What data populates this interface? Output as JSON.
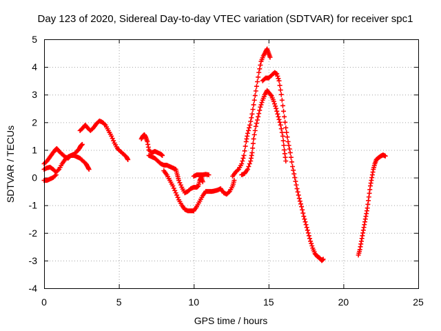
{
  "chart_data": {
    "type": "scatter",
    "title": "Day 123 of 2020, Sidereal Day-to-day VTEC variation (SDTVAR) for receiver spc1",
    "xlabel": "GPS time / hours",
    "ylabel": "SDTVAR / TECUs",
    "xlim": [
      0,
      25
    ],
    "ylim": [
      -4,
      5
    ],
    "xticks": [
      0,
      5,
      10,
      15,
      20,
      25
    ],
    "yticks": [
      -4,
      -3,
      -2,
      -1,
      0,
      1,
      2,
      3,
      4,
      5
    ],
    "grid": true,
    "marker": "plus",
    "color": "#ff0000",
    "series": [
      {
        "name": "SDTVAR",
        "segments": [
          [
            [
              0.0,
              0.5
            ],
            [
              0.2,
              0.6
            ],
            [
              0.4,
              0.75
            ],
            [
              0.6,
              0.9
            ],
            [
              0.75,
              1.0
            ],
            [
              0.85,
              1.05
            ],
            [
              1.0,
              0.95
            ],
            [
              1.2,
              0.85
            ],
            [
              1.4,
              0.75
            ],
            [
              1.6,
              0.7
            ],
            [
              1.8,
              0.8
            ],
            [
              2.0,
              0.8
            ],
            [
              2.2,
              0.75
            ],
            [
              2.4,
              0.7
            ],
            [
              2.6,
              0.6
            ],
            [
              2.8,
              0.5
            ],
            [
              2.9,
              0.4
            ],
            [
              3.0,
              0.3
            ]
          ],
          [
            [
              0.0,
              0.3
            ],
            [
              0.2,
              0.35
            ],
            [
              0.4,
              0.38
            ],
            [
              0.6,
              0.3
            ],
            [
              0.8,
              0.2
            ],
            [
              1.0,
              0.3
            ],
            [
              1.2,
              0.5
            ],
            [
              1.4,
              0.65
            ],
            [
              1.6,
              0.75
            ],
            [
              1.8,
              0.8
            ],
            [
              2.0,
              0.85
            ],
            [
              2.2,
              0.95
            ],
            [
              2.35,
              1.05
            ],
            [
              2.45,
              1.15
            ],
            [
              2.55,
              1.2
            ]
          ],
          [
            [
              0.0,
              -0.1
            ],
            [
              0.2,
              -0.1
            ],
            [
              0.4,
              -0.05
            ],
            [
              0.6,
              0.0
            ],
            [
              0.8,
              0.1
            ]
          ],
          [
            [
              2.4,
              1.7
            ],
            [
              2.6,
              1.8
            ],
            [
              2.75,
              1.9
            ],
            [
              2.9,
              1.8
            ],
            [
              3.1,
              1.7
            ],
            [
              3.3,
              1.8
            ],
            [
              3.5,
              1.95
            ],
            [
              3.7,
              2.05
            ],
            [
              3.9,
              2.0
            ],
            [
              4.1,
              1.9
            ],
            [
              4.3,
              1.7
            ],
            [
              4.5,
              1.5
            ],
            [
              4.7,
              1.25
            ],
            [
              4.9,
              1.05
            ],
            [
              5.1,
              0.95
            ],
            [
              5.3,
              0.85
            ],
            [
              5.5,
              0.75
            ],
            [
              5.6,
              0.65
            ]
          ],
          [
            [
              6.5,
              1.4
            ],
            [
              6.6,
              1.5
            ],
            [
              6.7,
              1.55
            ],
            [
              6.8,
              1.45
            ],
            [
              6.9,
              1.3
            ],
            [
              7.0,
              1.0
            ],
            [
              7.2,
              0.9
            ],
            [
              7.4,
              0.95
            ],
            [
              7.6,
              0.9
            ],
            [
              7.8,
              0.85
            ],
            [
              7.9,
              0.8
            ]
          ],
          [
            [
              7.0,
              0.8
            ],
            [
              7.2,
              0.75
            ],
            [
              7.4,
              0.7
            ],
            [
              7.6,
              0.6
            ],
            [
              7.8,
              0.5
            ],
            [
              8.0,
              0.45
            ],
            [
              8.2,
              0.45
            ],
            [
              8.4,
              0.4
            ],
            [
              8.6,
              0.35
            ],
            [
              8.8,
              0.3
            ],
            [
              8.9,
              0.1
            ],
            [
              9.0,
              -0.1
            ],
            [
              9.2,
              -0.35
            ],
            [
              9.4,
              -0.55
            ],
            [
              9.6,
              -0.5
            ],
            [
              9.8,
              -0.4
            ],
            [
              10.0,
              -0.35
            ],
            [
              10.2,
              -0.35
            ],
            [
              10.3,
              -0.3
            ],
            [
              10.4,
              -0.1
            ],
            [
              10.5,
              0.0
            ],
            [
              10.6,
              -0.15
            ]
          ],
          [
            [
              8.0,
              0.25
            ],
            [
              8.2,
              0.1
            ],
            [
              8.4,
              -0.1
            ],
            [
              8.6,
              -0.3
            ],
            [
              8.8,
              -0.55
            ],
            [
              9.0,
              -0.8
            ],
            [
              9.2,
              -1.0
            ],
            [
              9.4,
              -1.15
            ],
            [
              9.6,
              -1.2
            ],
            [
              9.8,
              -1.2
            ],
            [
              10.0,
              -1.2
            ],
            [
              10.2,
              -1.05
            ],
            [
              10.4,
              -0.85
            ],
            [
              10.6,
              -0.65
            ],
            [
              10.8,
              -0.5
            ],
            [
              11.0,
              -0.5
            ],
            [
              11.2,
              -0.5
            ],
            [
              11.4,
              -0.48
            ],
            [
              11.6,
              -0.45
            ],
            [
              11.8,
              -0.4
            ],
            [
              12.0,
              -0.55
            ],
            [
              12.2,
              -0.6
            ],
            [
              12.4,
              -0.5
            ],
            [
              12.6,
              -0.3
            ],
            [
              12.7,
              -0.1
            ]
          ],
          [
            [
              10.0,
              0.05
            ],
            [
              10.2,
              0.1
            ],
            [
              10.4,
              0.1
            ],
            [
              10.6,
              0.1
            ],
            [
              10.8,
              0.12
            ],
            [
              11.0,
              0.1
            ]
          ],
          [
            [
              12.6,
              0.05
            ],
            [
              12.8,
              0.2
            ],
            [
              13.0,
              0.3
            ],
            [
              13.2,
              0.5
            ],
            [
              13.35,
              0.8
            ],
            [
              13.5,
              1.3
            ],
            [
              13.6,
              1.6
            ],
            [
              13.75,
              1.9
            ],
            [
              13.9,
              2.3
            ],
            [
              14.05,
              2.8
            ],
            [
              14.2,
              3.3
            ],
            [
              14.35,
              3.8
            ],
            [
              14.5,
              4.2
            ],
            [
              14.65,
              4.4
            ],
            [
              14.8,
              4.55
            ],
            [
              14.9,
              4.65
            ],
            [
              15.0,
              4.5
            ],
            [
              15.1,
              4.35
            ]
          ],
          [
            [
              13.2,
              0.1
            ],
            [
              13.4,
              0.15
            ],
            [
              13.6,
              0.3
            ],
            [
              13.8,
              0.6
            ],
            [
              13.9,
              0.9
            ],
            [
              14.0,
              1.4
            ],
            [
              14.15,
              1.85
            ],
            [
              14.3,
              2.2
            ],
            [
              14.45,
              2.55
            ],
            [
              14.6,
              2.8
            ],
            [
              14.75,
              3.0
            ],
            [
              14.9,
              3.15
            ],
            [
              15.05,
              3.05
            ],
            [
              15.2,
              2.95
            ],
            [
              15.35,
              2.75
            ],
            [
              15.5,
              2.5
            ],
            [
              15.65,
              2.2
            ],
            [
              15.8,
              1.9
            ],
            [
              15.95,
              1.5
            ],
            [
              16.05,
              1.0
            ],
            [
              16.15,
              0.6
            ]
          ],
          [
            [
              14.6,
              3.5
            ],
            [
              14.8,
              3.6
            ],
            [
              15.0,
              3.6
            ],
            [
              15.2,
              3.7
            ],
            [
              15.4,
              3.8
            ],
            [
              15.55,
              3.75
            ],
            [
              15.7,
              3.5
            ],
            [
              15.85,
              3.0
            ],
            [
              16.0,
              2.4
            ],
            [
              16.15,
              1.8
            ],
            [
              16.3,
              1.3
            ],
            [
              16.45,
              0.9
            ],
            [
              16.6,
              0.4
            ],
            [
              16.75,
              0.0
            ],
            [
              16.9,
              -0.4
            ],
            [
              17.05,
              -0.75
            ],
            [
              17.2,
              -1.05
            ],
            [
              17.35,
              -1.4
            ],
            [
              17.5,
              -1.7
            ],
            [
              17.65,
              -2.0
            ],
            [
              17.8,
              -2.3
            ],
            [
              17.95,
              -2.55
            ],
            [
              18.1,
              -2.75
            ],
            [
              18.25,
              -2.85
            ],
            [
              18.4,
              -2.9
            ],
            [
              18.55,
              -3.0
            ],
            [
              18.65,
              -2.95
            ]
          ],
          [
            [
              21.0,
              -2.8
            ],
            [
              21.1,
              -2.6
            ],
            [
              21.2,
              -2.3
            ],
            [
              21.3,
              -2.0
            ],
            [
              21.4,
              -1.7
            ],
            [
              21.5,
              -1.4
            ],
            [
              21.6,
              -1.1
            ],
            [
              21.7,
              -0.7
            ],
            [
              21.8,
              -0.3
            ],
            [
              21.9,
              0.0
            ],
            [
              22.0,
              0.3
            ],
            [
              22.1,
              0.5
            ],
            [
              22.2,
              0.65
            ],
            [
              22.35,
              0.72
            ],
            [
              22.5,
              0.78
            ],
            [
              22.65,
              0.82
            ],
            [
              22.8,
              0.78
            ]
          ]
        ]
      }
    ]
  }
}
